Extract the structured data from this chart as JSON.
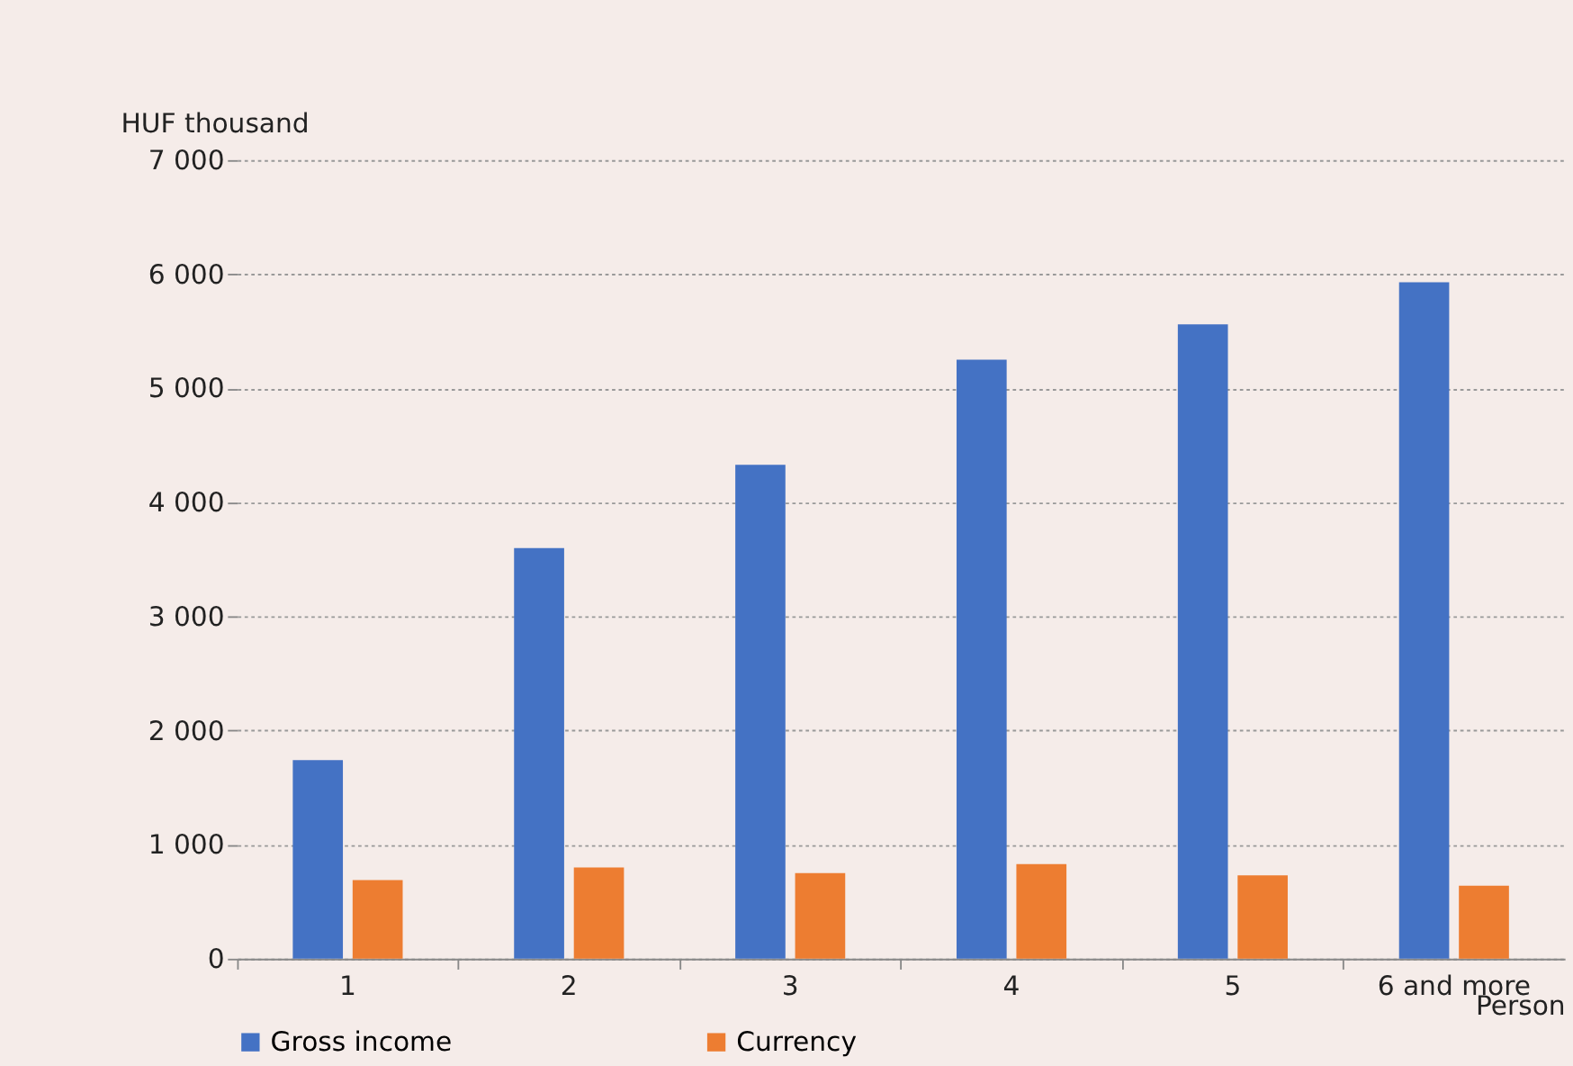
{
  "chart_data": {
    "type": "bar",
    "categories": [
      "1",
      "2",
      "3",
      "4",
      "5",
      "6  and more"
    ],
    "xlabel": "Person",
    "ylabel": "HUF thousand",
    "series": [
      {
        "name": "Gross income",
        "color": "#4472c4",
        "values": [
          1740,
          3600,
          4330,
          5250,
          5560,
          5930
        ]
      },
      {
        "name": "Currency",
        "color": "#ed7d31",
        "values": [
          690,
          800,
          750,
          830,
          730,
          640
        ]
      }
    ],
    "ylim": [
      0,
      7000
    ],
    "yticks": [
      {
        "value": 0,
        "label": "0"
      },
      {
        "value": 1000,
        "label": "1 000"
      },
      {
        "value": 2000,
        "label": "2 000"
      },
      {
        "value": 3000,
        "label": "3 000"
      },
      {
        "value": 4000,
        "label": "4 000"
      },
      {
        "value": 5000,
        "label": "5 000"
      },
      {
        "value": 6000,
        "label": "6 000"
      },
      {
        "value": 7000,
        "label": "7 000"
      }
    ],
    "grid": "y",
    "legend": "bottom"
  }
}
